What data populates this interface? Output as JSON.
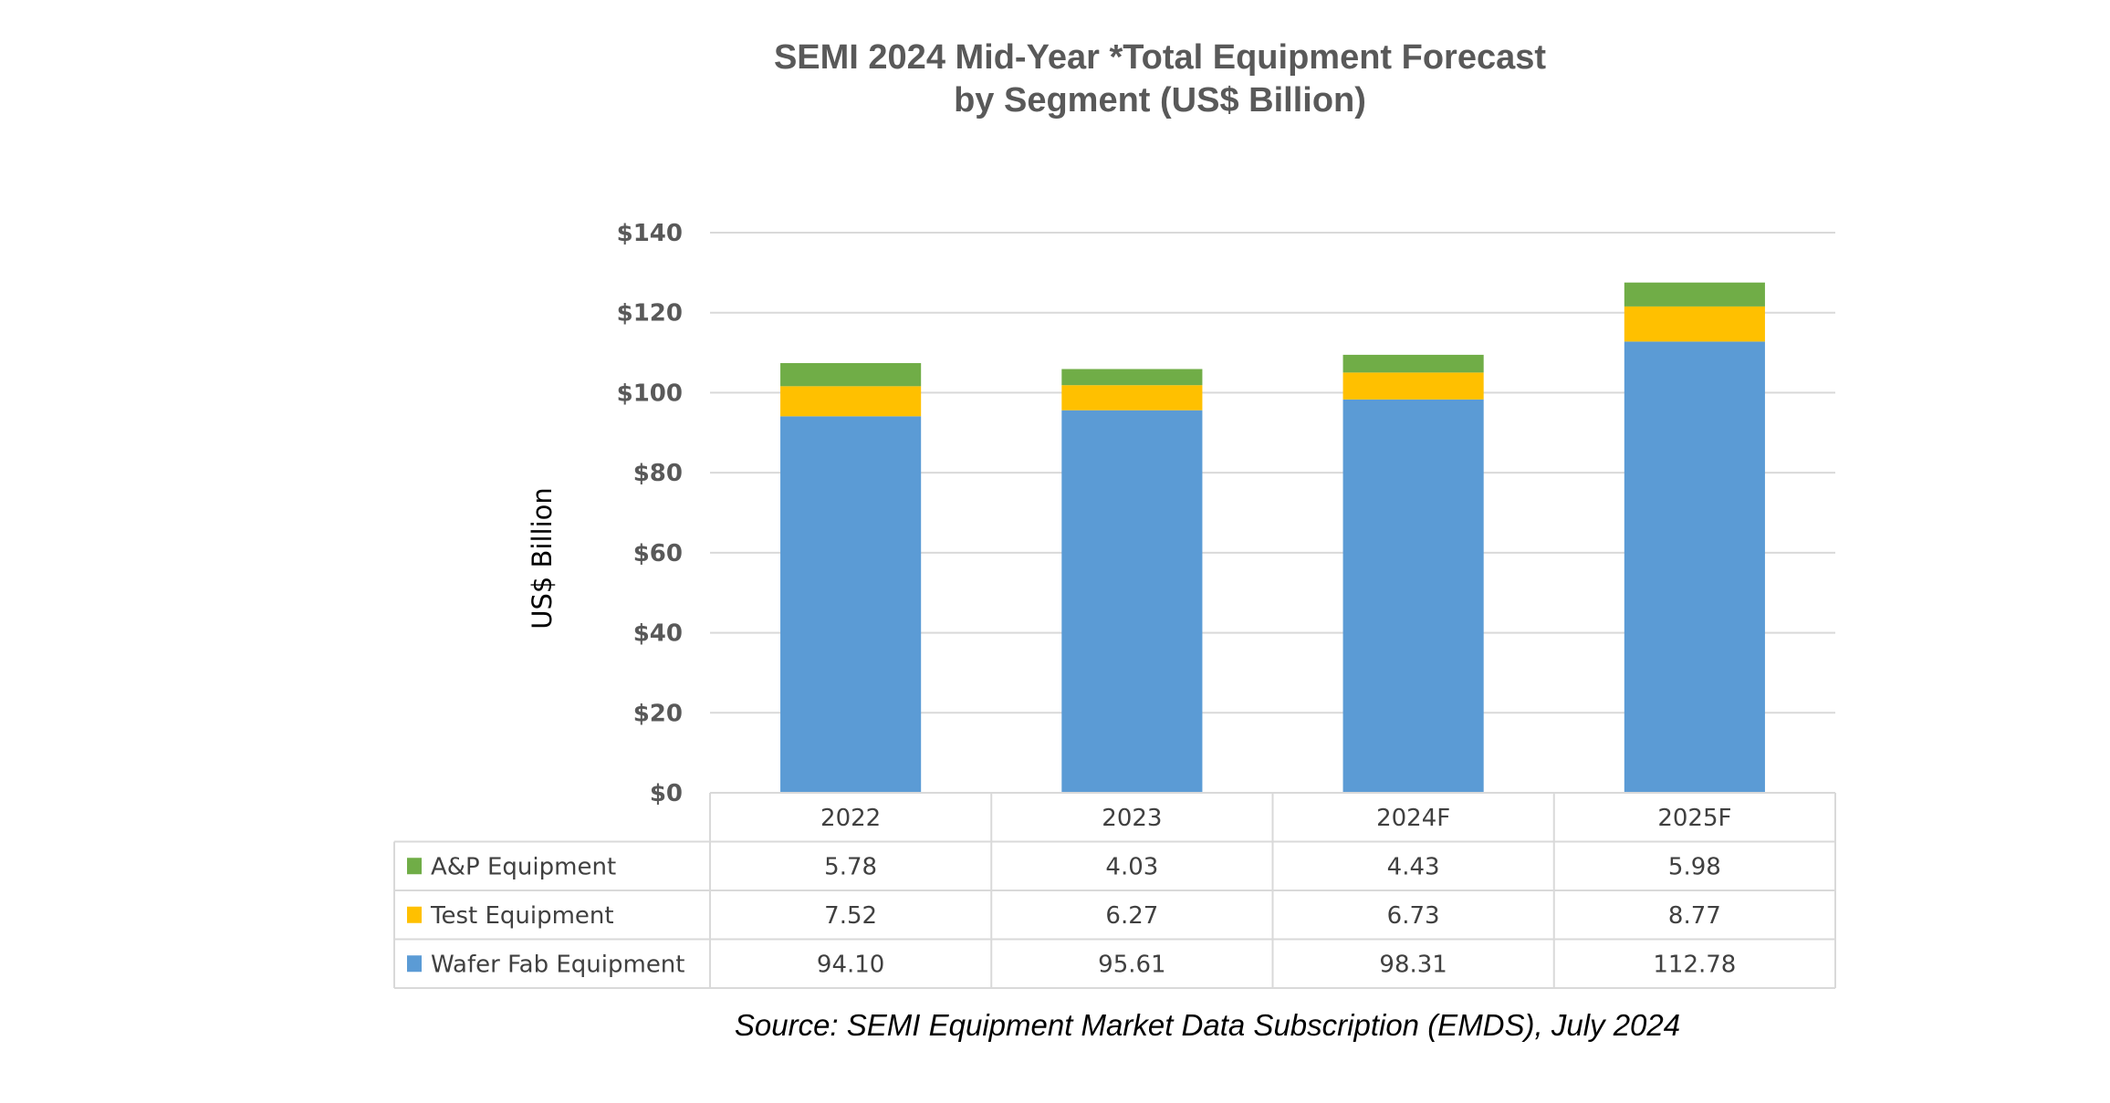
{
  "chart_data": {
    "type": "bar",
    "stacked": true,
    "title": [
      "SEMI 2024 Mid-Year *Total Equipment Forecast",
      "by Segment (US$ Billion)"
    ],
    "xlabel": "",
    "ylabel": "US$ Billion",
    "ylim": [
      0,
      140
    ],
    "yticks": [
      0,
      20,
      40,
      60,
      80,
      100,
      120,
      140
    ],
    "ytick_labels": [
      "$0",
      "$20",
      "$40",
      "$60",
      "$80",
      "$100",
      "$120",
      "$140"
    ],
    "grid": true,
    "legend": "data-table",
    "categories": [
      "2022",
      "2023",
      "2024F",
      "2025F"
    ],
    "series": [
      {
        "name": "A&P Equipment",
        "color": "#70AD47",
        "values": [
          5.78,
          4.03,
          4.43,
          5.98
        ],
        "labels": [
          "5.78",
          "4.03",
          "4.43",
          "5.98"
        ]
      },
      {
        "name": "Test Equipment",
        "color": "#FFC000",
        "values": [
          7.52,
          6.27,
          6.73,
          8.77
        ],
        "labels": [
          "7.52",
          "6.27",
          "6.73",
          "8.77"
        ]
      },
      {
        "name": "Wafer Fab Equipment",
        "color": "#5B9BD5",
        "values": [
          94.1,
          95.61,
          98.31,
          112.78
        ],
        "labels": [
          "94.10",
          "95.61",
          "98.31",
          "112.78"
        ]
      }
    ],
    "source": "Source: SEMI Equipment Market Data Subscription (EMDS), July 2024"
  }
}
